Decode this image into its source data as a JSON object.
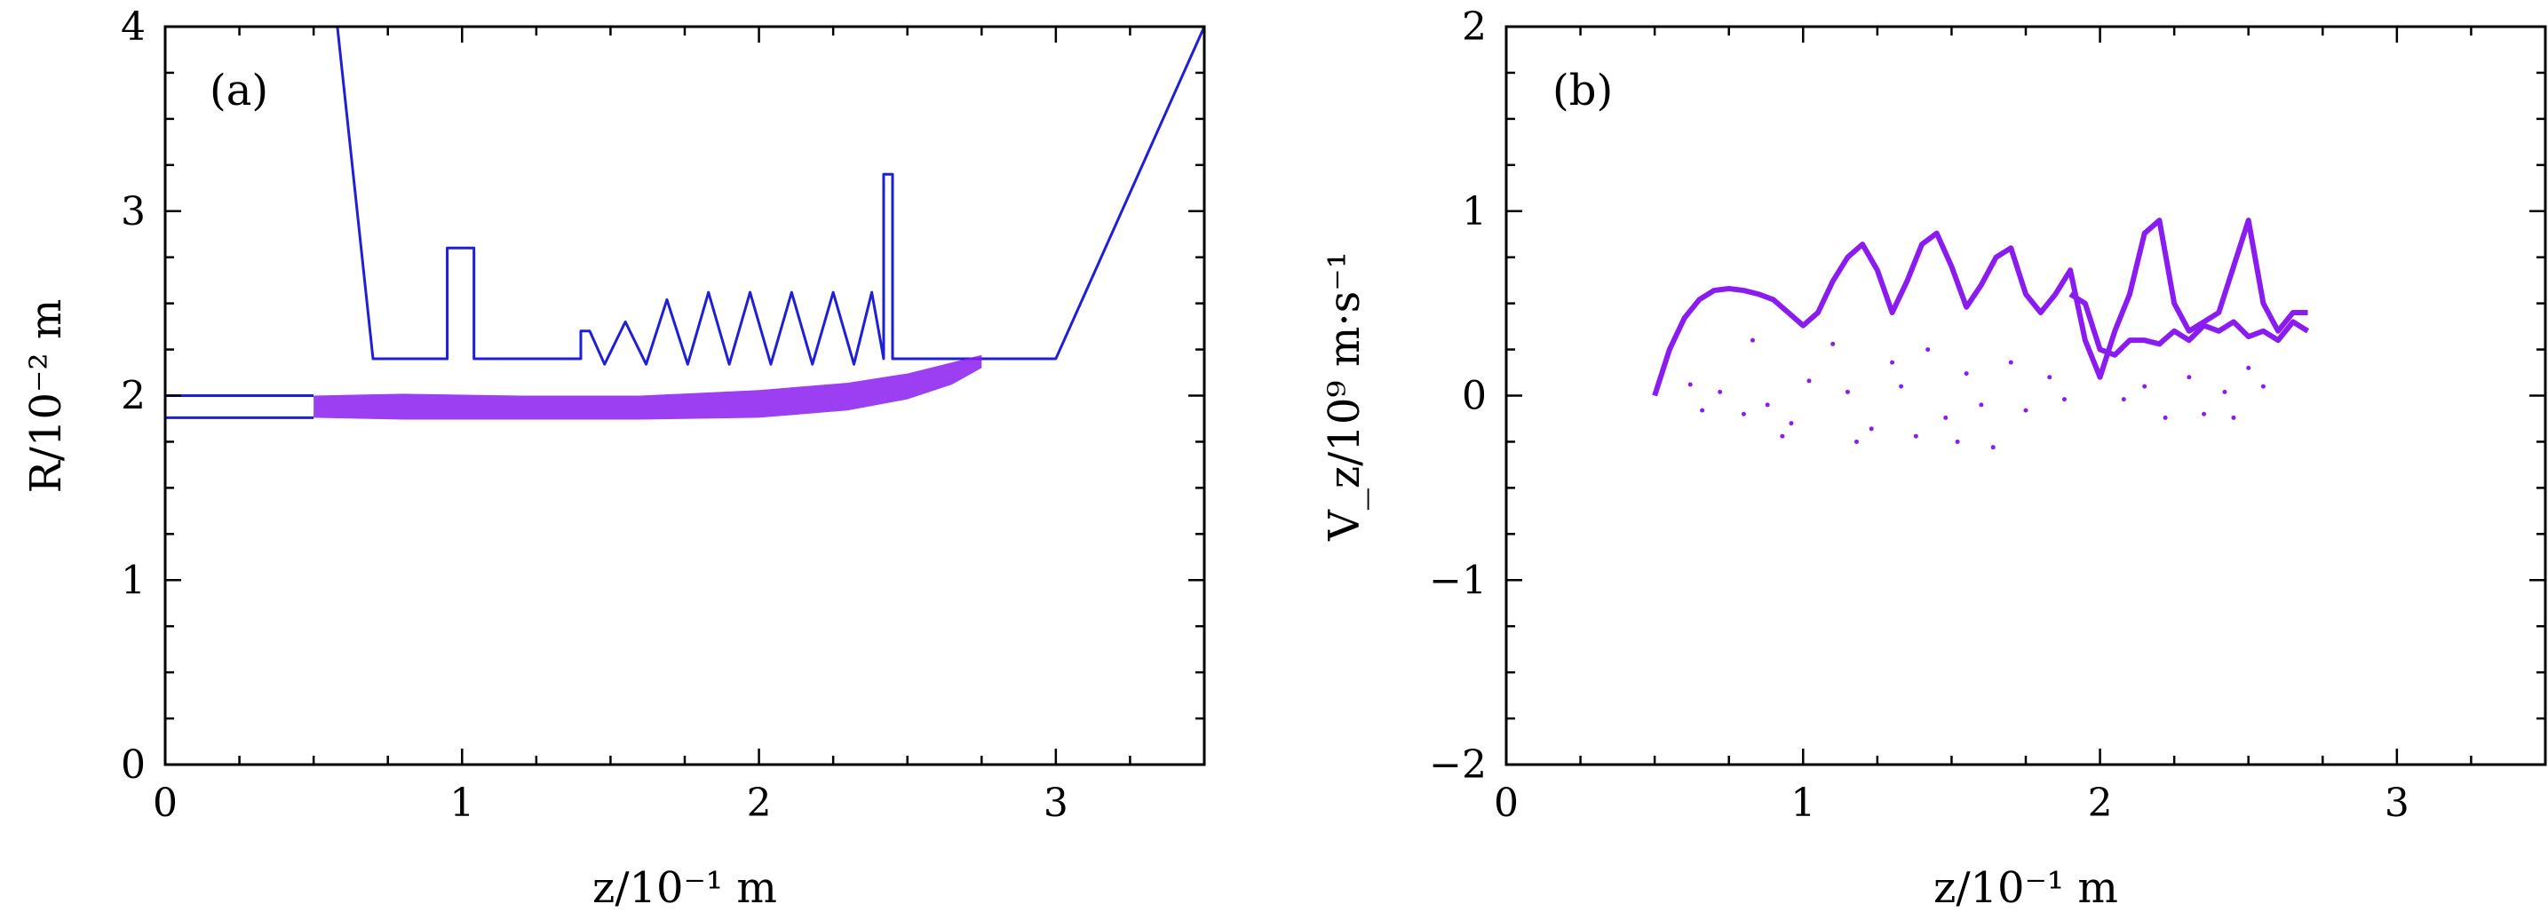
{
  "chart_data": [
    {
      "panel_label": "(a)",
      "type": "line",
      "xlabel": "z/10⁻¹ m",
      "ylabel": "R/10⁻² m",
      "xlim": [
        0,
        3.5
      ],
      "ylim": [
        0,
        4
      ],
      "xticks": [
        0,
        1,
        2,
        3
      ],
      "yticks": [
        0,
        1,
        2,
        3,
        4
      ],
      "x_tick_labels": [
        "0",
        "1",
        "2",
        "3"
      ],
      "y_tick_labels": [
        "0",
        "1",
        "2",
        "3",
        "4"
      ],
      "x_minor_step": 0.25,
      "y_minor_step": 0.25,
      "colors": {
        "boundary": "#1f1fd6",
        "beam": "#8b1cf0"
      },
      "series": [
        {
          "name": "cavity boundary",
          "kind": "line",
          "x": [
            0.58,
            0.7,
            0.95,
            0.95,
            1.04,
            1.04,
            1.4,
            1.4,
            1.43,
            1.48,
            1.55,
            1.62,
            1.69,
            1.76,
            1.83,
            1.9,
            1.97,
            2.04,
            2.11,
            2.18,
            2.25,
            2.32,
            2.38,
            2.42,
            2.42,
            2.45,
            2.45,
            2.52,
            2.52,
            3.0,
            3.5
          ],
          "y": [
            4.0,
            2.2,
            2.2,
            2.8,
            2.8,
            2.2,
            2.2,
            2.35,
            2.35,
            2.17,
            2.4,
            2.17,
            2.52,
            2.17,
            2.56,
            2.17,
            2.56,
            2.17,
            2.56,
            2.17,
            2.56,
            2.17,
            2.56,
            2.2,
            3.2,
            3.2,
            2.2,
            2.2,
            2.2,
            2.2,
            4.0
          ]
        },
        {
          "name": "top boundary",
          "kind": "line",
          "x": [
            0.0,
            0.58
          ],
          "y": [
            4.0,
            4.0
          ]
        },
        {
          "name": "input waveguide outer",
          "kind": "line",
          "x": [
            0.0,
            0.5
          ],
          "y": [
            2.0,
            2.0
          ]
        },
        {
          "name": "input waveguide inner",
          "kind": "line",
          "x": [
            0.0,
            0.5
          ],
          "y": [
            1.88,
            1.88
          ]
        },
        {
          "name": "electron beam envelope",
          "kind": "band",
          "x": [
            0.5,
            0.8,
            1.2,
            1.6,
            2.0,
            2.3,
            2.5,
            2.65,
            2.75
          ],
          "upper": [
            2.0,
            2.01,
            2.0,
            2.0,
            2.03,
            2.07,
            2.12,
            2.18,
            2.22
          ],
          "lower": [
            1.88,
            1.87,
            1.87,
            1.87,
            1.88,
            1.92,
            1.98,
            2.06,
            2.15
          ]
        }
      ]
    },
    {
      "panel_label": "(b)",
      "type": "scatter",
      "xlabel": "z/10⁻¹ m",
      "ylabel": "V_z/10⁹ m·s⁻¹",
      "xlim": [
        0,
        3.5
      ],
      "ylim": [
        -2,
        2
      ],
      "xticks": [
        0,
        1,
        2,
        3
      ],
      "yticks": [
        -2,
        -1,
        0,
        1,
        2
      ],
      "x_tick_labels": [
        "0",
        "1",
        "2",
        "3"
      ],
      "y_tick_labels": [
        "−2",
        "−1",
        "0",
        "1",
        "2"
      ],
      "x_minor_step": 0.25,
      "y_minor_step": 0.25,
      "colors": {
        "points": "#8b1cf0"
      },
      "series": [
        {
          "name": "main velocity trace",
          "kind": "line",
          "x": [
            0.5,
            0.55,
            0.6,
            0.65,
            0.7,
            0.75,
            0.8,
            0.85,
            0.9,
            0.95,
            1.0,
            1.05,
            1.1,
            1.15,
            1.2,
            1.25,
            1.3,
            1.35,
            1.4,
            1.45,
            1.5,
            1.55,
            1.6,
            1.65,
            1.7,
            1.75,
            1.8,
            1.85,
            1.9,
            1.95,
            2.0,
            2.05,
            2.1,
            2.15,
            2.2,
            2.25,
            2.3,
            2.35,
            2.4,
            2.45,
            2.5,
            2.55,
            2.6,
            2.65,
            2.7
          ],
          "y": [
            0.0,
            0.25,
            0.42,
            0.52,
            0.57,
            0.58,
            0.57,
            0.55,
            0.52,
            0.45,
            0.38,
            0.45,
            0.62,
            0.75,
            0.82,
            0.68,
            0.45,
            0.62,
            0.82,
            0.88,
            0.7,
            0.48,
            0.6,
            0.75,
            0.8,
            0.55,
            0.45,
            0.55,
            0.68,
            0.3,
            0.1,
            0.35,
            0.55,
            0.88,
            0.95,
            0.5,
            0.35,
            0.4,
            0.45,
            0.7,
            0.95,
            0.5,
            0.35,
            0.45,
            0.45
          ]
        },
        {
          "name": "secondary trace",
          "kind": "line",
          "x": [
            1.9,
            1.95,
            2.0,
            2.05,
            2.1,
            2.15,
            2.2,
            2.25,
            2.3,
            2.35,
            2.4,
            2.45,
            2.5,
            2.55,
            2.6,
            2.65,
            2.7
          ],
          "y": [
            0.55,
            0.5,
            0.25,
            0.22,
            0.3,
            0.3,
            0.28,
            0.35,
            0.3,
            0.38,
            0.35,
            0.4,
            0.32,
            0.35,
            0.3,
            0.4,
            0.35
          ]
        },
        {
          "name": "scattered particles",
          "kind": "points",
          "x": [
            0.62,
            0.66,
            0.72,
            0.8,
            0.83,
            0.88,
            0.93,
            0.96,
            1.02,
            1.1,
            1.15,
            1.18,
            1.23,
            1.3,
            1.33,
            1.38,
            1.42,
            1.48,
            1.52,
            1.55,
            1.6,
            1.64,
            1.7,
            1.75,
            1.83,
            1.88,
            2.08,
            2.15,
            2.22,
            2.3,
            2.35,
            2.42,
            2.45,
            2.5,
            2.55
          ],
          "y": [
            0.06,
            -0.08,
            0.02,
            -0.1,
            0.3,
            -0.05,
            -0.22,
            -0.15,
            0.08,
            0.28,
            0.02,
            -0.25,
            -0.18,
            0.18,
            0.05,
            -0.22,
            0.25,
            -0.12,
            -0.25,
            0.12,
            -0.05,
            -0.28,
            0.18,
            -0.08,
            0.1,
            -0.02,
            -0.02,
            0.05,
            -0.12,
            0.1,
            -0.1,
            0.02,
            -0.12,
            0.15,
            0.05
          ]
        }
      ]
    }
  ]
}
